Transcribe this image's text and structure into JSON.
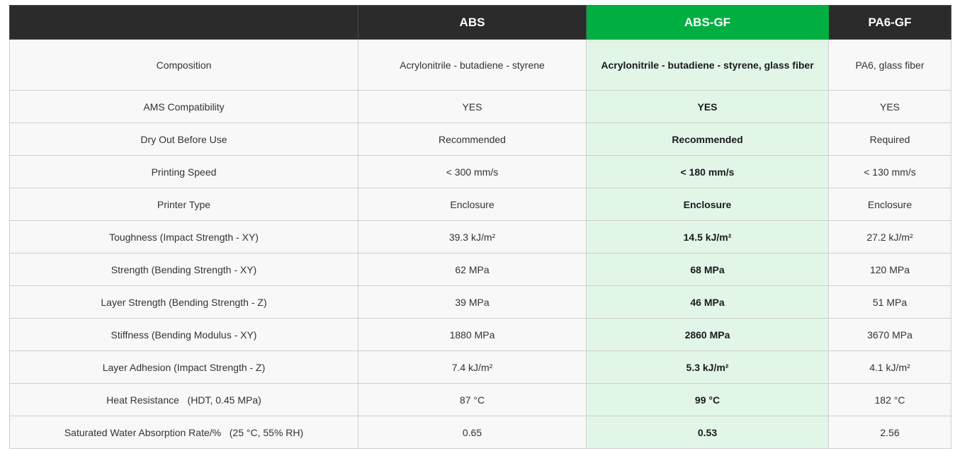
{
  "header": {
    "corner": "",
    "columns": [
      "ABS",
      "ABS-GF",
      "PA6-GF"
    ]
  },
  "colors": {
    "header_bg": "#2b2b2b",
    "highlight_header": "#00ae42",
    "highlight_cell": "#e2f6e8",
    "row_bg": "#f8f8f8"
  },
  "rows": [
    {
      "label": "Composition",
      "values": [
        "Acrylonitrile - butadiene - styrene",
        "Acrylonitrile - butadiene - styrene, glass fiber",
        "PA6, glass fiber"
      ]
    },
    {
      "label": "AMS Compatibility",
      "values": [
        "YES",
        "YES",
        "YES"
      ]
    },
    {
      "label": "Dry Out Before Use",
      "values": [
        "Recommended",
        "Recommended",
        "Required"
      ]
    },
    {
      "label": "Printing Speed",
      "values": [
        "< 300 mm/s",
        "< 180 mm/s",
        "< 130 mm/s"
      ]
    },
    {
      "label": "Printer Type",
      "values": [
        "Enclosure",
        "Enclosure",
        "Enclosure"
      ]
    },
    {
      "label": "Toughness (Impact Strength - XY)",
      "values": [
        "39.3 kJ/m²",
        "14.5 kJ/m²",
        "27.2 kJ/m²"
      ]
    },
    {
      "label": "Strength (Bending Strength - XY)",
      "values": [
        "62 MPa",
        "68 MPa",
        "120 MPa"
      ]
    },
    {
      "label": "Layer Strength (Bending Strength - Z)",
      "values": [
        "39 MPa",
        "46 MPa",
        "51 MPa"
      ]
    },
    {
      "label": "Stiffness (Bending Modulus - XY)",
      "values": [
        "1880 MPa",
        "2860 MPa",
        "3670 MPa"
      ]
    },
    {
      "label": "Layer Adhesion (Impact Strength - Z)",
      "values": [
        "7.4 kJ/m²",
        "5.3 kJ/m²",
        "4.1 kJ/m²"
      ]
    },
    {
      "label": "Heat Resistance   (HDT, 0.45 MPa)",
      "values": [
        "87 °C",
        "99 °C",
        "182 °C"
      ]
    },
    {
      "label": "Saturated Water Absorption Rate/%   (25 °C, 55% RH)",
      "values": [
        "0.65",
        "0.53",
        "2.56"
      ]
    }
  ]
}
